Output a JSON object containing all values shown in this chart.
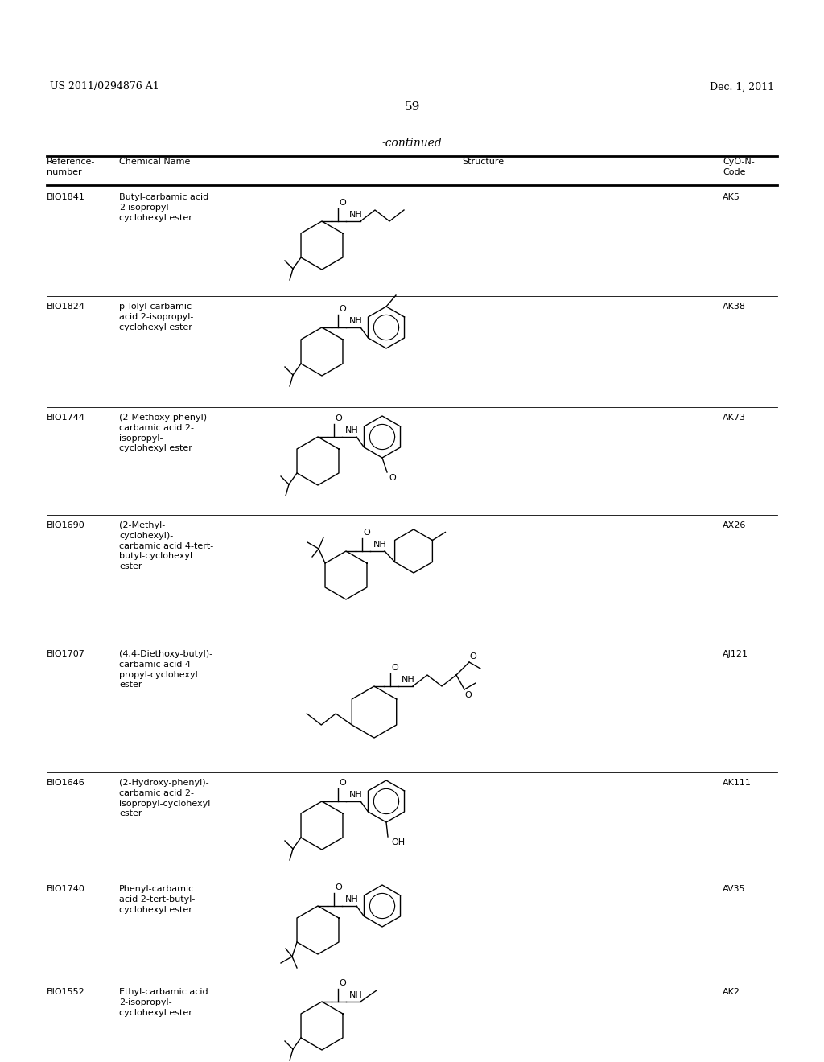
{
  "bg_color": "#ffffff",
  "header_left": "US 2011/0294876 A1",
  "header_right": "Dec. 1, 2011",
  "page_number": "59",
  "continued_text": "-continued",
  "rows": [
    {
      "ref": "BIO1841",
      "name_lines": [
        "Butyl-carbamic acid",
        "2-isopropyl-",
        "cyclohexyl ester"
      ],
      "code": "AK5"
    },
    {
      "ref": "BIO1824",
      "name_lines": [
        "p-Tolyl-carbamic",
        "acid 2-isopropyl-",
        "cyclohexyl ester"
      ],
      "code": "AK38"
    },
    {
      "ref": "BIO1744",
      "name_lines": [
        "(2-Methoxy-phenyl)-",
        "carbamic acid 2-",
        "isopropyl-",
        "cyclohexyl ester"
      ],
      "code": "AK73"
    },
    {
      "ref": "BIO1690",
      "name_lines": [
        "(2-Methyl-",
        "cyclohexyl)-",
        "carbamic acid 4-tert-",
        "butyl-cyclohexyl",
        "ester"
      ],
      "code": "AX26"
    },
    {
      "ref": "BIO1707",
      "name_lines": [
        "(4,4-Diethoxy-butyl)-",
        "carbamic acid 4-",
        "propyl-cyclohexyl",
        "ester"
      ],
      "code": "AJ121"
    },
    {
      "ref": "BIO1646",
      "name_lines": [
        "(2-Hydroxy-phenyl)-",
        "carbamic acid 2-",
        "isopropyl-cyclohexyl",
        "ester"
      ],
      "code": "AK111"
    },
    {
      "ref": "BIO1740",
      "name_lines": [
        "Phenyl-carbamic",
        "acid 2-tert-butyl-",
        "cyclohexyl ester"
      ],
      "code": "AV35"
    },
    {
      "ref": "BIO1552",
      "name_lines": [
        "Ethyl-carbamic acid",
        "2-isopropyl-",
        "cyclohexyl ester"
      ],
      "code": "AK2"
    }
  ]
}
